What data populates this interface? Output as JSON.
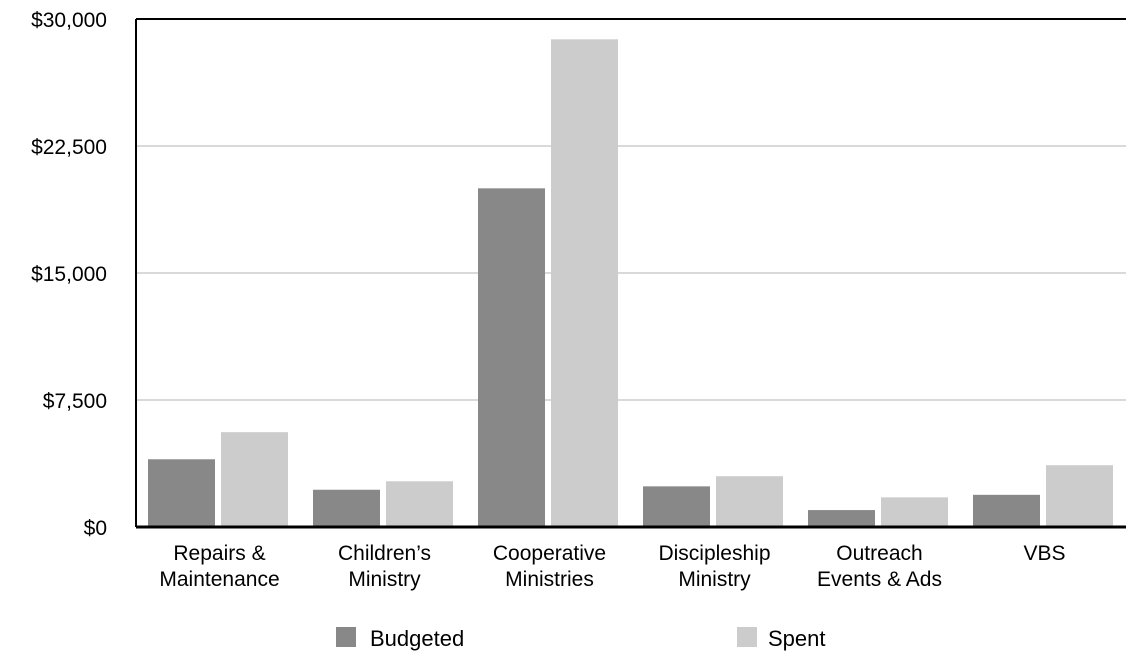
{
  "chart_data": {
    "type": "bar",
    "categories": [
      [
        "Repairs &",
        "Maintenance"
      ],
      [
        "Children’s",
        "Ministry"
      ],
      [
        "Cooperative",
        "Ministries"
      ],
      [
        "Discipleship",
        "Ministry"
      ],
      [
        "Outreach",
        "Events & Ads"
      ],
      [
        "VBS"
      ]
    ],
    "series": [
      {
        "name": "Budgeted",
        "color": "#888888",
        "values": [
          4000,
          2200,
          20000,
          2400,
          1000,
          1900
        ]
      },
      {
        "name": "Spent",
        "color": "#cccccc",
        "values": [
          5600,
          2700,
          28800,
          3000,
          1750,
          3650
        ]
      }
    ],
    "ylim": [
      0,
      30000
    ],
    "yticks": [
      0,
      7500,
      15000,
      22500,
      30000
    ],
    "ytick_labels": [
      "$0",
      "$7,500",
      "$15,000",
      "$22,500",
      "$30,000"
    ],
    "grid": true,
    "legend_position": "bottom"
  }
}
